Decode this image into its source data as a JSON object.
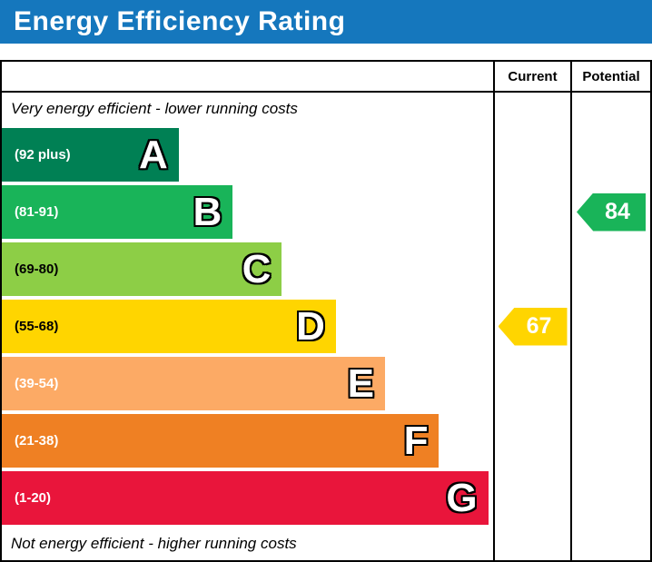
{
  "title": "Energy Efficiency Rating",
  "columns": {
    "current": "Current",
    "potential": "Potential"
  },
  "notes": {
    "top": "Very energy efficient - lower running costs",
    "bottom": "Not energy efficient - higher running costs"
  },
  "colors": {
    "title_bar": "#1577bd",
    "chart_border": "#000000",
    "chart_background": "#ffffff"
  },
  "chart_data": {
    "type": "bar",
    "orientation": "horizontal",
    "title": "Energy Efficiency Rating",
    "bands": [
      {
        "letter": "A",
        "range": "(92 plus)",
        "color": "#008054",
        "text_color": "#ffffff",
        "width_pct": 36
      },
      {
        "letter": "B",
        "range": "(81-91)",
        "color": "#19b459",
        "text_color": "#ffffff",
        "width_pct": 47
      },
      {
        "letter": "C",
        "range": "(69-80)",
        "color": "#8dce46",
        "text_color": "#000000",
        "width_pct": 57
      },
      {
        "letter": "D",
        "range": "(55-68)",
        "color": "#ffd500",
        "text_color": "#000000",
        "width_pct": 68
      },
      {
        "letter": "E",
        "range": "(39-54)",
        "color": "#fcaa65",
        "text_color": "#ffffff",
        "width_pct": 78
      },
      {
        "letter": "F",
        "range": "(21-38)",
        "color": "#ef8023",
        "text_color": "#ffffff",
        "width_pct": 89
      },
      {
        "letter": "G",
        "range": "(1-20)",
        "color": "#e9153b",
        "text_color": "#ffffff",
        "width_pct": 99
      }
    ],
    "current": {
      "value": 67,
      "band": "D",
      "color": "#ffd500"
    },
    "potential": {
      "value": 84,
      "band": "B",
      "color": "#19b459"
    }
  }
}
